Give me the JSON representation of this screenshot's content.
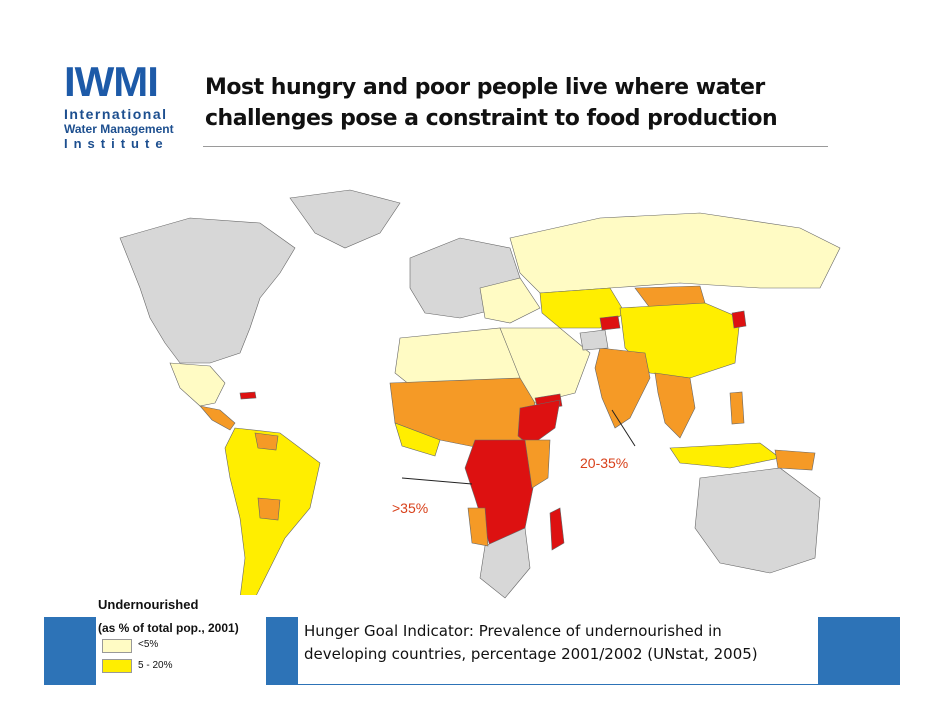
{
  "logo": {
    "acronym": "IWMI",
    "line1": "International",
    "line2": "Water Management",
    "line3": "Institute"
  },
  "title": "Most hungry and poor people live where water challenges pose a constraint to food production",
  "map": {
    "annotations": {
      "high": ">35%",
      "mid": "20-35%"
    },
    "colors": {
      "lt5": "#fffbc4",
      "5to20": "#ffee00",
      "20to35": "#f59a26",
      "gt35": "#dd1111",
      "no_data": "#d7d7d7",
      "ocean": "#ffffff"
    }
  },
  "legend": {
    "title": "Undernourished",
    "subtitle": "(as % of total pop., 2001)",
    "items": [
      {
        "label": "<5%",
        "color": "#fffbc4"
      },
      {
        "label": "5 - 20%",
        "color": "#ffee00"
      }
    ]
  },
  "caption": {
    "line1": "Hunger Goal Indicator: Prevalence of undernourished in",
    "line2": "developing countries, percentage 2001/2002 (UNstat, 2005)"
  }
}
